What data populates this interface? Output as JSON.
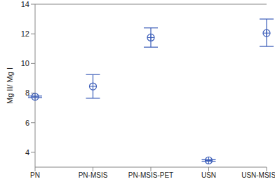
{
  "chart_data": {
    "type": "scatter",
    "y_label": "Mg II/ Mg I",
    "categories": [
      "PN",
      "PN-MSIS",
      "PN-MSIS-PET",
      "USN",
      "USN-MSIS-PET"
    ],
    "values": [
      7.75,
      8.45,
      11.75,
      3.45,
      12.05
    ],
    "errors": [
      [
        0.05,
        0.05
      ],
      [
        0.8,
        0.8
      ],
      [
        0.65,
        0.65
      ],
      [
        0.05,
        0.05
      ],
      [
        0.9,
        0.95
      ]
    ],
    "color": "#3a5cb8",
    "marker": "circle-plus",
    "ylim": [
      3,
      14
    ],
    "yticks": [
      4,
      6,
      8,
      10,
      12,
      14
    ]
  }
}
